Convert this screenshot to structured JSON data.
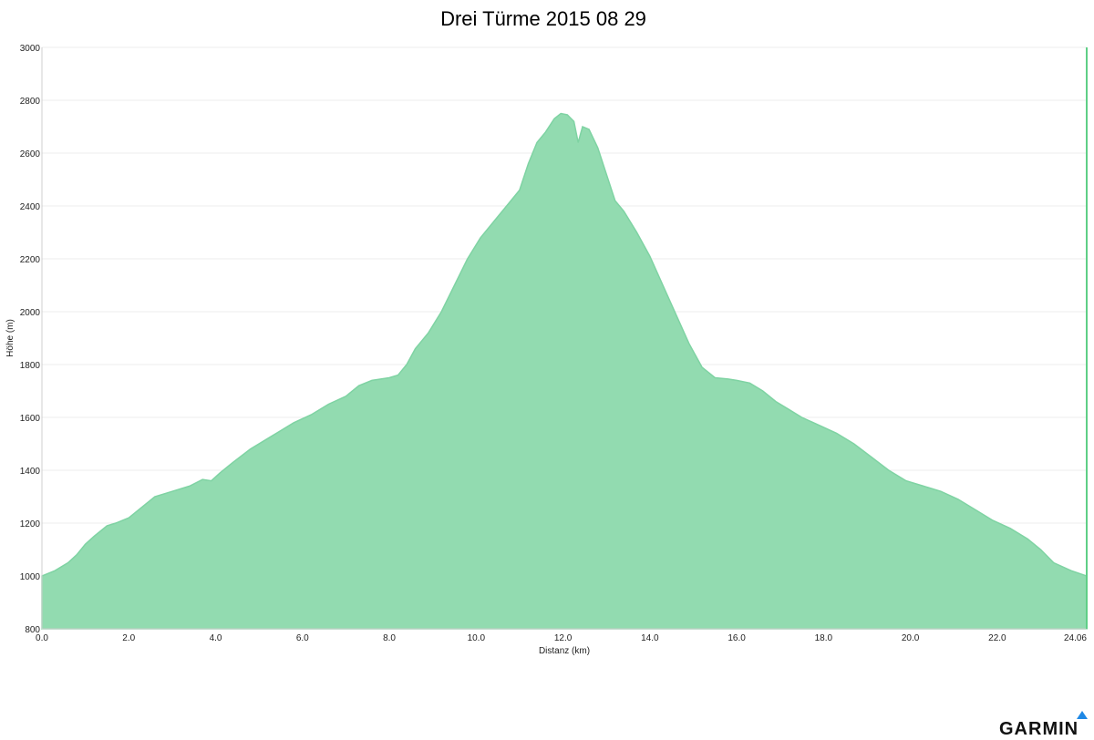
{
  "title": "Drei Türme 2015 08 29",
  "chart_data": {
    "type": "area",
    "title": "Drei Türme 2015 08 29",
    "xlabel": "Distanz   (km)",
    "ylabel": "Höhe (m)",
    "xlim": [
      0,
      24.06
    ],
    "ylim": [
      800,
      3000
    ],
    "x_ticks": [
      "0.0",
      "2.0",
      "4.0",
      "6.0",
      "8.0",
      "10.0",
      "12.0",
      "14.0",
      "16.0",
      "18.0",
      "20.0",
      "22.0",
      "24.06"
    ],
    "x_tick_values": [
      0,
      2,
      4,
      6,
      8,
      10,
      12,
      14,
      16,
      18,
      20,
      22,
      24.06
    ],
    "y_ticks": [
      "800",
      "1000",
      "1200",
      "1400",
      "1600",
      "1800",
      "2000",
      "2200",
      "2400",
      "2600",
      "2800",
      "3000"
    ],
    "y_tick_values": [
      800,
      1000,
      1200,
      1400,
      1600,
      1800,
      2000,
      2200,
      2400,
      2600,
      2800,
      3000
    ],
    "grid": true,
    "fill_color": "#92dbb0",
    "line_color": "#7fd3a3",
    "series": [
      {
        "x": [
          0,
          0.3,
          0.6,
          0.8,
          1.0,
          1.2,
          1.5,
          1.7,
          2.0,
          2.3,
          2.6,
          3.0,
          3.4,
          3.7,
          3.9,
          4.1,
          4.4,
          4.8,
          5.2,
          5.5,
          5.8,
          6.2,
          6.6,
          7.0,
          7.3,
          7.6,
          8.0,
          8.2,
          8.4,
          8.6,
          8.9,
          9.2,
          9.5,
          9.8,
          10.1,
          10.4,
          10.7,
          11.0,
          11.2,
          11.4,
          11.6,
          11.8,
          11.95,
          12.1,
          12.25,
          12.35,
          12.45,
          12.6,
          12.8,
          13.0,
          13.2,
          13.4,
          13.7,
          14.0,
          14.3,
          14.6,
          14.9,
          15.2,
          15.5,
          15.8,
          16.0,
          16.3,
          16.6,
          16.9,
          17.2,
          17.5,
          17.9,
          18.3,
          18.7,
          19.1,
          19.5,
          19.9,
          20.3,
          20.7,
          21.1,
          21.5,
          21.9,
          22.3,
          22.7,
          23.0,
          23.3,
          23.7,
          24.06
        ],
        "y": [
          1000,
          1020,
          1050,
          1080,
          1120,
          1150,
          1190,
          1200,
          1220,
          1260,
          1300,
          1320,
          1340,
          1365,
          1360,
          1390,
          1430,
          1480,
          1520,
          1550,
          1580,
          1610,
          1650,
          1680,
          1720,
          1740,
          1750,
          1760,
          1800,
          1860,
          1920,
          2000,
          2100,
          2200,
          2280,
          2340,
          2400,
          2460,
          2560,
          2640,
          2680,
          2730,
          2750,
          2745,
          2720,
          2640,
          2700,
          2690,
          2620,
          2520,
          2420,
          2380,
          2300,
          2210,
          2100,
          1990,
          1880,
          1790,
          1750,
          1745,
          1740,
          1730,
          1700,
          1660,
          1630,
          1600,
          1570,
          1540,
          1500,
          1450,
          1400,
          1360,
          1340,
          1320,
          1290,
          1250,
          1210,
          1180,
          1140,
          1100,
          1050,
          1020,
          1000
        ]
      }
    ]
  },
  "logo": {
    "text": "GARMIN",
    "accent": "#1e88e5"
  }
}
